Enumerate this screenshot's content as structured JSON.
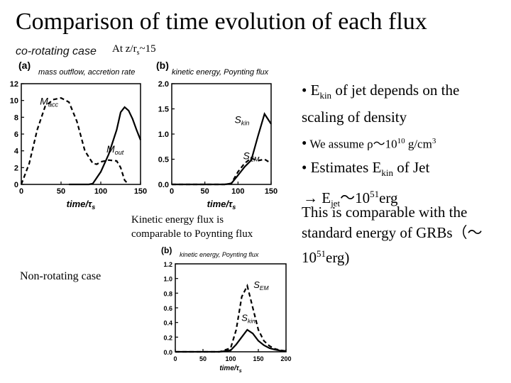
{
  "title": "Comparison of time evolution of each flux",
  "corotating": {
    "case_label": "co-rotating case",
    "radius_prefix": "At z/r",
    "radius_sub": "s",
    "radius_suffix": "~15"
  },
  "bullets": {
    "b1_bullet": "•",
    "b1_a": "E",
    "b1_sub": "kin",
    "b1_b": " of jet depends on the",
    "b1_line2": "scaling of density",
    "b2_bullet": "•",
    "b2_a": "We assume ρ～10",
    "b2_sup": "10",
    "b2_b": " g/cm",
    "b2_sup2": "3",
    "b3_bullet": "•",
    "b3_a": "Estimates E",
    "b3_sub": "kin",
    "b3_b": " of Jet",
    "b3_arrow": "→ E",
    "b3_sub2": "jet",
    "b3_c": "～10",
    "b3_sup": "51",
    "b3_d": "erg"
  },
  "comparison": {
    "line1": "This is comparable with the",
    "line2": "standard energy of GRBs（～",
    "line3_a": "10",
    "line3_sup": "51",
    "line3_b": "erg)"
  },
  "note": {
    "line1": "Kinetic energy flux is",
    "line2": "comparable to Poynting flux"
  },
  "nonrotating_label": "Non-rotating case",
  "chart_data": [
    {
      "type": "line",
      "panel": "(a)",
      "title": "mass outflow, accretion rate",
      "xlabel": "time/τ_s",
      "xlim": [
        0,
        150
      ],
      "ylim": [
        0,
        12
      ],
      "xticks": [
        "0",
        "50",
        "100",
        "150"
      ],
      "yticks": [
        "0",
        "2",
        "4",
        "6",
        "8",
        "10",
        "12"
      ],
      "series": [
        {
          "name": "M_acc",
          "style": "dashed",
          "x": [
            0,
            10,
            20,
            30,
            40,
            50,
            60,
            70,
            80,
            90,
            95,
            100,
            110,
            120,
            125,
            130,
            135
          ],
          "y": [
            0,
            2.5,
            6.5,
            9.3,
            10.1,
            10.3,
            9.8,
            7.5,
            4.0,
            2.5,
            2.4,
            2.7,
            2.9,
            2.8,
            2.0,
            0.5,
            0
          ]
        },
        {
          "name": "M_out",
          "style": "solid",
          "x": [
            60,
            70,
            80,
            85,
            90,
            100,
            110,
            120,
            125,
            130,
            135,
            140,
            145,
            150
          ],
          "y": [
            0,
            0,
            0,
            0,
            0.1,
            1.5,
            3.6,
            6.5,
            8.6,
            9.2,
            8.8,
            7.8,
            6.5,
            5.3
          ]
        }
      ]
    },
    {
      "type": "line",
      "panel": "(b)",
      "title": "kinetic energy, Poynting flux",
      "xlabel": "time/τ_s",
      "xlim": [
        0,
        150
      ],
      "ylim": [
        0,
        2.0
      ],
      "xticks": [
        "0",
        "50",
        "100",
        "150"
      ],
      "yticks": [
        "0.0",
        "0.5",
        "1.0",
        "1.5",
        "2.0"
      ],
      "series": [
        {
          "name": "S_kin",
          "style": "solid",
          "x": [
            0,
            80,
            90,
            100,
            110,
            120,
            130,
            140,
            150
          ],
          "y": [
            0,
            0,
            0.02,
            0.18,
            0.35,
            0.48,
            0.95,
            1.4,
            1.2
          ]
        },
        {
          "name": "S_EM",
          "style": "dashed",
          "x": [
            0,
            80,
            90,
            100,
            110,
            115,
            120,
            130,
            140,
            150
          ],
          "y": [
            0,
            0,
            0.02,
            0.25,
            0.42,
            0.47,
            0.52,
            0.47,
            0.5,
            0.42
          ]
        }
      ]
    },
    {
      "type": "line",
      "panel": "(b)",
      "title": "kinetic energy, Poynting flux",
      "xlabel": "time/τ_s",
      "xlim": [
        0,
        200
      ],
      "ylim": [
        0,
        1.2
      ],
      "xticks": [
        "0",
        "50",
        "100",
        "150",
        "200"
      ],
      "yticks": [
        "0.0",
        "0.2",
        "0.4",
        "0.6",
        "0.8",
        "1.0",
        "1.2"
      ],
      "series": [
        {
          "name": "S_EM",
          "style": "dashed",
          "x": [
            0,
            80,
            100,
            110,
            120,
            130,
            140,
            150,
            160,
            170,
            180,
            190,
            200
          ],
          "y": [
            0,
            0,
            0.05,
            0.3,
            0.75,
            0.9,
            0.6,
            0.3,
            0.15,
            0.08,
            0.04,
            0.02,
            0.01
          ]
        },
        {
          "name": "S_kin",
          "style": "solid",
          "x": [
            0,
            80,
            100,
            110,
            120,
            130,
            140,
            150,
            160,
            170,
            180,
            190,
            200
          ],
          "y": [
            0,
            0,
            0.02,
            0.1,
            0.2,
            0.3,
            0.25,
            0.15,
            0.09,
            0.05,
            0.03,
            0.015,
            0.01
          ]
        }
      ]
    }
  ]
}
